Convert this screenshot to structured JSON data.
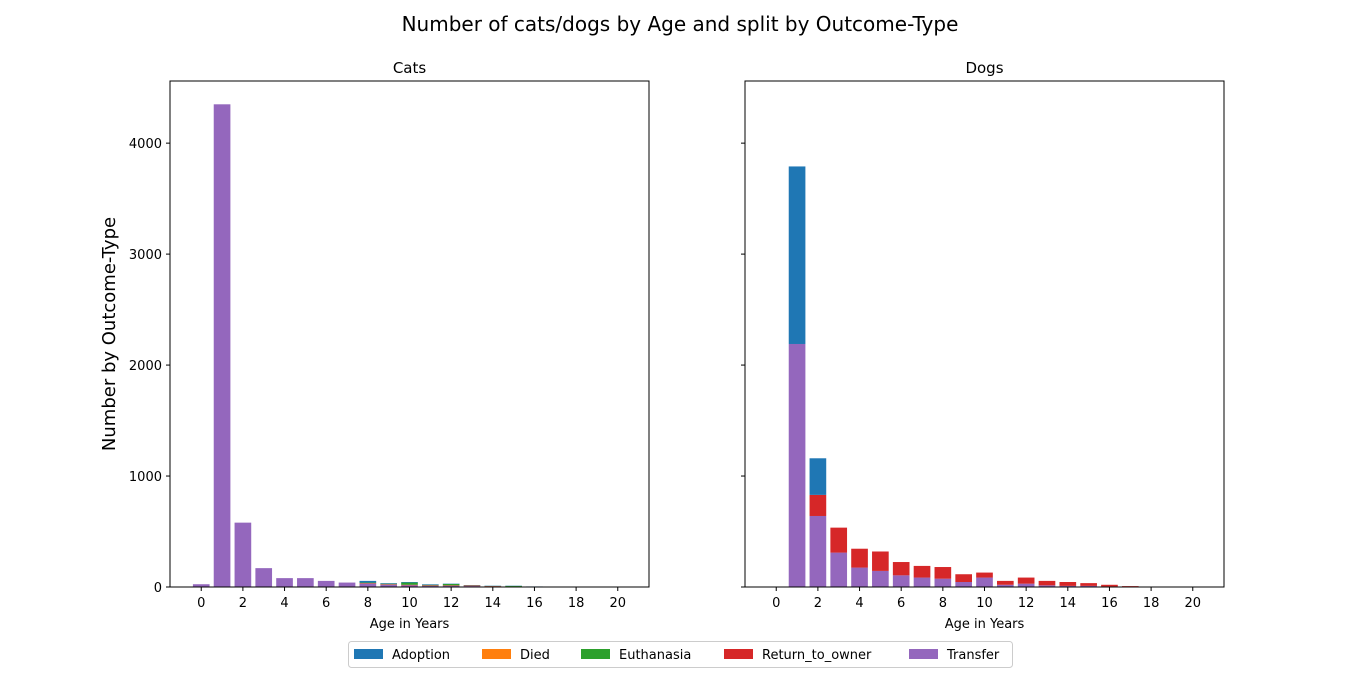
{
  "figure": {
    "title": "Number of cats/dogs by Age and split by Outcome-Type",
    "ylabel": "Number by Outcome-Type"
  },
  "legend": {
    "placement": "bottom-center",
    "entries": [
      {
        "name": "Adoption",
        "color": "#1f77b4"
      },
      {
        "name": "Died",
        "color": "#ff7f0e"
      },
      {
        "name": "Euthanasia",
        "color": "#2ca02c"
      },
      {
        "name": "Return_to_owner",
        "color": "#d62728"
      },
      {
        "name": "Transfer",
        "color": "#9467bd"
      }
    ]
  },
  "chart_data": [
    {
      "type": "bar",
      "stacked": true,
      "title": "Cats",
      "xlabel": "Age in Years",
      "ylabel": "Number by Outcome-Type",
      "x": [
        0,
        1,
        2,
        3,
        4,
        5,
        6,
        7,
        8,
        9,
        10,
        11,
        12,
        13,
        14,
        15,
        16,
        17,
        18,
        19,
        20
      ],
      "xticks": [
        0,
        2,
        4,
        6,
        8,
        10,
        12,
        14,
        16,
        18,
        20
      ],
      "xlim": [
        -1.5,
        21.5
      ],
      "ylim": [
        0,
        4560
      ],
      "yticks": [
        0,
        1000,
        2000,
        3000,
        4000
      ],
      "grid": false,
      "series": [
        {
          "name": "Transfer",
          "values": [
            25,
            4350,
            580,
            170,
            80,
            80,
            55,
            40,
            30,
            20,
            15,
            10,
            10,
            8,
            5,
            3,
            2,
            1,
            0,
            0,
            0
          ]
        },
        {
          "name": "Return_to_owner",
          "values": [
            0,
            0,
            0,
            0,
            0,
            0,
            0,
            0,
            5,
            5,
            5,
            5,
            5,
            5,
            3,
            2,
            1,
            0,
            0,
            0,
            0
          ]
        },
        {
          "name": "Euthanasia",
          "values": [
            0,
            0,
            0,
            0,
            0,
            0,
            0,
            0,
            5,
            5,
            20,
            5,
            12,
            3,
            2,
            5,
            1,
            0,
            0,
            0,
            0
          ]
        },
        {
          "name": "Died",
          "values": [
            0,
            0,
            0,
            0,
            0,
            0,
            0,
            0,
            0,
            0,
            0,
            0,
            0,
            0,
            0,
            0,
            0,
            0,
            0,
            0,
            0
          ]
        },
        {
          "name": "Adoption",
          "values": [
            0,
            0,
            0,
            0,
            0,
            0,
            0,
            0,
            15,
            5,
            5,
            5,
            3,
            2,
            2,
            2,
            1,
            0,
            0,
            0,
            0
          ]
        }
      ]
    },
    {
      "type": "bar",
      "stacked": true,
      "title": "Dogs",
      "xlabel": "Age in Years",
      "x": [
        0,
        1,
        2,
        3,
        4,
        5,
        6,
        7,
        8,
        9,
        10,
        11,
        12,
        13,
        14,
        15,
        16,
        17,
        18,
        19,
        20
      ],
      "xticks": [
        0,
        2,
        4,
        6,
        8,
        10,
        12,
        14,
        16,
        18,
        20
      ],
      "xlim": [
        -1.5,
        21.5
      ],
      "ylim": [
        0,
        4560
      ],
      "yticks": [
        0,
        1000,
        2000,
        3000,
        4000
      ],
      "grid": false,
      "series": [
        {
          "name": "Transfer",
          "values": [
            0,
            2190,
            640,
            310,
            175,
            145,
            105,
            85,
            75,
            45,
            85,
            20,
            30,
            15,
            10,
            10,
            5,
            3,
            0,
            0,
            0
          ]
        },
        {
          "name": "Return_to_owner",
          "values": [
            0,
            0,
            190,
            225,
            170,
            175,
            120,
            105,
            105,
            70,
            45,
            35,
            55,
            40,
            35,
            25,
            15,
            5,
            0,
            0,
            0
          ]
        },
        {
          "name": "Euthanasia",
          "values": [
            0,
            0,
            0,
            0,
            0,
            0,
            0,
            0,
            0,
            0,
            0,
            0,
            0,
            0,
            0,
            0,
            0,
            0,
            0,
            0,
            0
          ]
        },
        {
          "name": "Died",
          "values": [
            0,
            0,
            0,
            0,
            0,
            0,
            0,
            0,
            0,
            0,
            0,
            0,
            0,
            0,
            0,
            0,
            0,
            0,
            0,
            0,
            0
          ]
        },
        {
          "name": "Adoption",
          "values": [
            0,
            1600,
            330,
            0,
            0,
            0,
            0,
            0,
            0,
            0,
            0,
            0,
            0,
            0,
            0,
            0,
            0,
            0,
            0,
            0,
            0
          ]
        }
      ]
    }
  ]
}
